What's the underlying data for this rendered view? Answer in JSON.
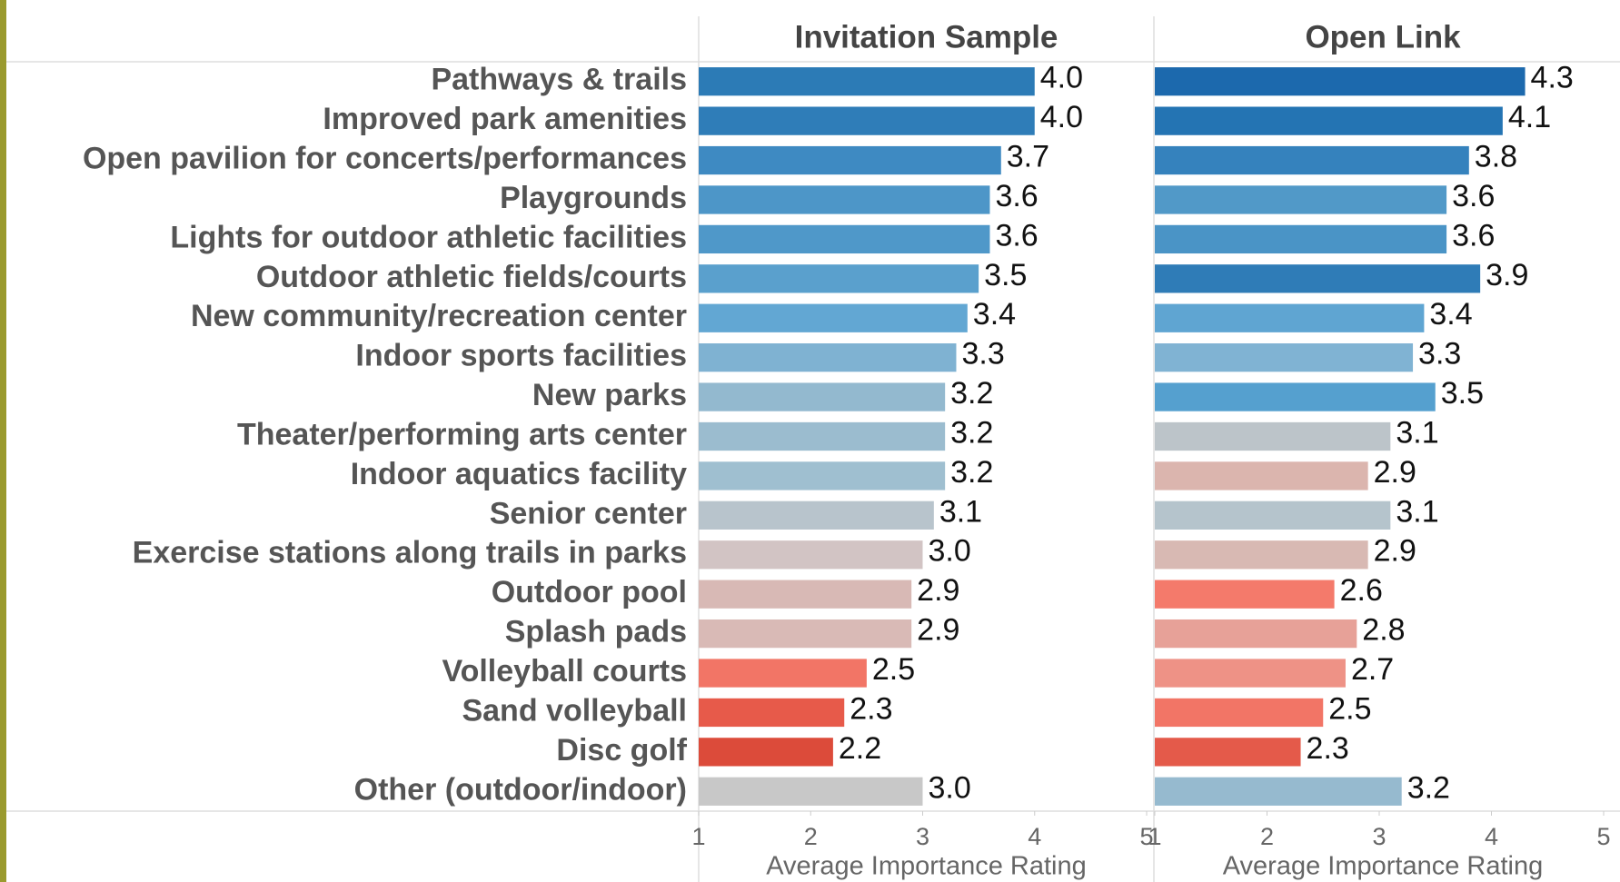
{
  "chart_data": {
    "type": "bar",
    "orientation": "horizontal",
    "categories": [
      "Pathways & trails",
      "Improved park amenities",
      "Open pavilion for concerts/performances",
      "Playgrounds",
      "Lights for outdoor athletic facilities",
      "Outdoor athletic fields/courts",
      "New community/recreation center",
      "Indoor sports facilities",
      "New parks",
      "Theater/performing arts center",
      "Indoor aquatics facility",
      "Senior center",
      "Exercise stations along trails in parks",
      "Outdoor pool",
      "Splash pads",
      "Volleyball courts",
      "Sand volleyball",
      "Disc golf",
      "Other (outdoor/indoor)"
    ],
    "series": [
      {
        "name": "Invitation Sample",
        "values": [
          4.0,
          4.0,
          3.7,
          3.6,
          3.6,
          3.5,
          3.4,
          3.3,
          3.2,
          3.2,
          3.2,
          3.1,
          3.0,
          2.9,
          2.9,
          2.5,
          2.3,
          2.2,
          3.0
        ],
        "value_labels": [
          "4.0",
          "4.0",
          "3.7",
          "3.6",
          "3.6",
          "3.5",
          "3.4",
          "3.3",
          "3.2",
          "3.2",
          "3.2",
          "3.1",
          "3.0",
          "2.9",
          "2.9",
          "2.5",
          "2.3",
          "2.2",
          "3.0"
        ],
        "colors": [
          "#2c7bb6",
          "#2f7db8",
          "#3e8ac2",
          "#4d96c8",
          "#4f98c9",
          "#5aa0cd",
          "#62a7d3",
          "#7fb2d2",
          "#93b9cf",
          "#9bbccf",
          "#9fbfd0",
          "#b8c4cc",
          "#d2c4c4",
          "#d8b9b5",
          "#d9bab6",
          "#f27566",
          "#e75a4a",
          "#dc4b3a",
          "#c8c8c8"
        ]
      },
      {
        "name": "Open Link",
        "values": [
          4.3,
          4.1,
          3.8,
          3.6,
          3.6,
          3.9,
          3.4,
          3.3,
          3.5,
          3.1,
          2.9,
          3.1,
          2.9,
          2.6,
          2.8,
          2.7,
          2.5,
          2.3,
          3.2
        ],
        "value_labels": [
          "4.3",
          "4.1",
          "3.8",
          "3.6",
          "3.6",
          "3.9",
          "3.4",
          "3.3",
          "3.5",
          "3.1",
          "2.9",
          "3.1",
          "2.9",
          "2.6",
          "2.8",
          "2.7",
          "2.5",
          "2.3",
          "3.2"
        ],
        "colors": [
          "#1c69ad",
          "#2474b3",
          "#3582bd",
          "#5199c8",
          "#4a94c6",
          "#2f7cb7",
          "#5fa5d2",
          "#80b3d3",
          "#55a0cf",
          "#bcc4c9",
          "#dbb5ae",
          "#b5c4cc",
          "#d8b9b3",
          "#f47a6b",
          "#e7a198",
          "#ee9286",
          "#f27566",
          "#e45a4a",
          "#96bacf"
        ]
      }
    ],
    "xlim": [
      1,
      5
    ],
    "xticks": [
      1,
      2,
      3,
      4,
      5
    ],
    "xlabel": "Average Importance Rating"
  }
}
